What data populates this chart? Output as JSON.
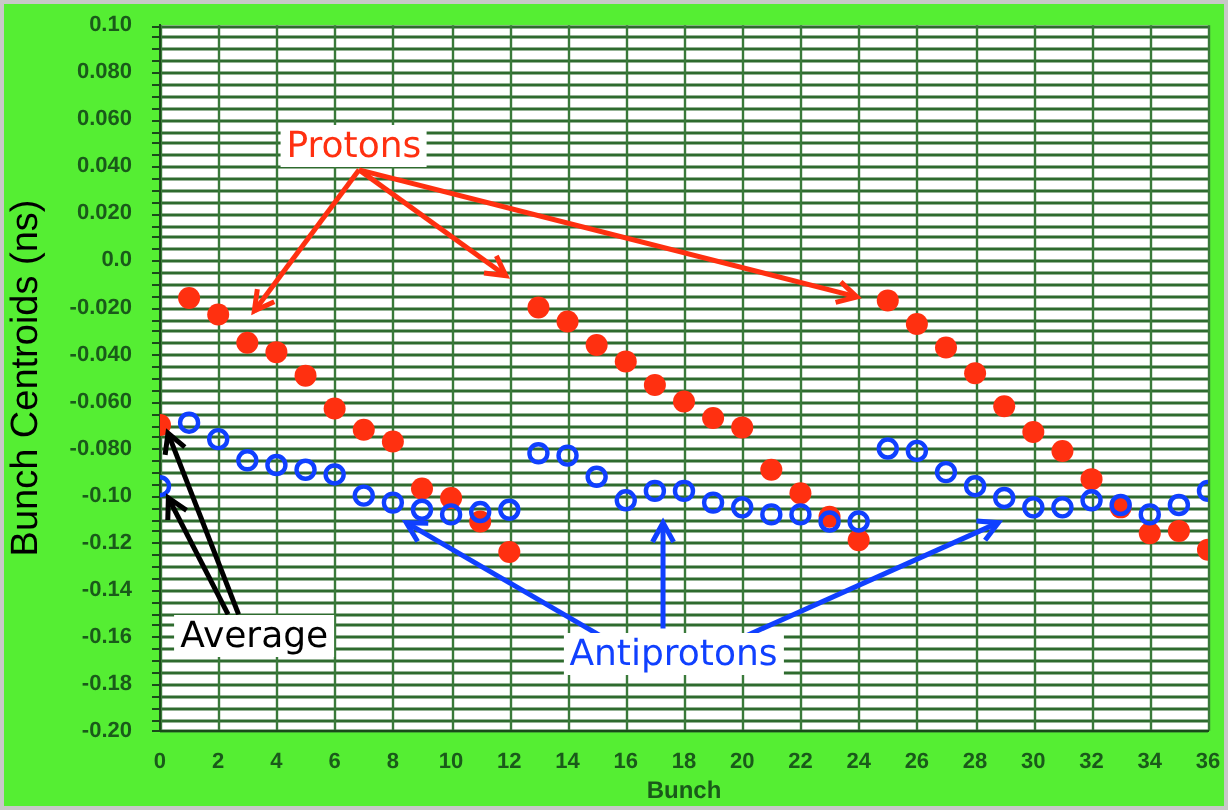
{
  "chart_data": {
    "type": "scatter",
    "xlabel": "Bunch",
    "ylabel": "Bunch Centroids (ns)",
    "x": [
      0,
      1,
      2,
      3,
      4,
      5,
      6,
      7,
      8,
      9,
      10,
      11,
      12,
      13,
      14,
      15,
      16,
      17,
      18,
      19,
      20,
      21,
      22,
      23,
      24,
      25,
      26,
      27,
      28,
      29,
      30,
      31,
      32,
      33,
      34,
      35,
      36
    ],
    "series": [
      {
        "name": "Protons",
        "color": "#ff3010",
        "marker": "circle",
        "values": [
          -0.07,
          -0.016,
          -0.023,
          -0.035,
          -0.039,
          -0.049,
          -0.063,
          -0.072,
          -0.077,
          -0.097,
          -0.101,
          -0.111,
          -0.124,
          -0.02,
          -0.026,
          -0.036,
          -0.043,
          -0.053,
          -0.06,
          -0.067,
          -0.071,
          -0.089,
          -0.099,
          -0.109,
          -0.119,
          -0.017,
          -0.027,
          -0.037,
          -0.048,
          -0.062,
          -0.073,
          -0.081,
          -0.093,
          -0.105,
          -0.116,
          -0.115,
          -0.123
        ]
      },
      {
        "name": "Antiprotons",
        "color": "#1040ff",
        "marker": "circle_open",
        "values": [
          -0.096,
          -0.069,
          -0.076,
          -0.085,
          -0.087,
          -0.089,
          -0.091,
          -0.1,
          -0.103,
          -0.106,
          -0.108,
          -0.107,
          -0.106,
          -0.082,
          -0.083,
          -0.092,
          -0.102,
          -0.098,
          -0.098,
          -0.103,
          -0.105,
          -0.108,
          -0.108,
          -0.111,
          -0.111,
          -0.08,
          -0.081,
          -0.09,
          -0.096,
          -0.101,
          -0.105,
          -0.105,
          -0.102,
          -0.104,
          -0.108,
          -0.104,
          -0.098
        ]
      }
    ],
    "xlim": [
      0,
      36
    ],
    "xticks": [
      0,
      2,
      4,
      6,
      8,
      10,
      12,
      14,
      16,
      18,
      20,
      22,
      24,
      26,
      28,
      30,
      32,
      34,
      36
    ],
    "ylim": [
      -0.2,
      0.1
    ],
    "yticks": [
      {
        "value": -0.2,
        "label": "-0.20"
      },
      {
        "value": -0.18,
        "label": "-0.18"
      },
      {
        "value": -0.16,
        "label": "-0.16"
      },
      {
        "value": -0.14,
        "label": "-0.14"
      },
      {
        "value": -0.12,
        "label": "-0.12"
      },
      {
        "value": -0.1,
        "label": "-0.10"
      },
      {
        "value": -0.08,
        "label": "-0.080"
      },
      {
        "value": -0.06,
        "label": "-0.060"
      },
      {
        "value": -0.04,
        "label": "-0.040"
      },
      {
        "value": -0.02,
        "label": "-0.020"
      },
      {
        "value": 0,
        "label": "0.0"
      },
      {
        "value": 0.02,
        "label": "0.020"
      },
      {
        "value": 0.04,
        "label": "0.040"
      },
      {
        "value": 0.06,
        "label": "0.060"
      },
      {
        "value": 0.08,
        "label": "0.080"
      },
      {
        "value": 0.1,
        "label": "0.10"
      }
    ],
    "grid": true,
    "legend": false,
    "annotations": [
      {
        "text": "Average",
        "x": 0,
        "y": -0.07
      }
    ]
  }
}
